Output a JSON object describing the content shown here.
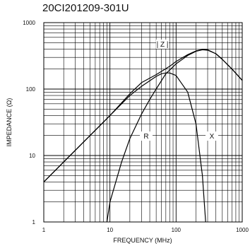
{
  "chart_data": {
    "type": "line",
    "title": "20CI201209-301U",
    "xlabel": "FREQUENCY (MHz)",
    "ylabel": "IMPEDANCE (Ω)",
    "x_scale": "log",
    "y_scale": "log",
    "xlim": [
      1,
      1000
    ],
    "ylim": [
      1,
      1000
    ],
    "grid": true,
    "x_tick_labels": [
      "1",
      "10",
      "100",
      "1000"
    ],
    "y_tick_labels": [
      "1",
      "10",
      "100",
      "1000"
    ],
    "series": [
      {
        "name": "| Z |",
        "x": [
          1,
          2,
          5,
          10,
          20,
          30,
          50,
          80,
          100,
          150,
          200,
          250,
          300,
          400,
          500,
          700,
          1000
        ],
        "y": [
          4,
          8,
          20,
          40,
          85,
          125,
          165,
          220,
          260,
          330,
          375,
          395,
          390,
          340,
          280,
          200,
          135
        ]
      },
      {
        "name": "R",
        "x": [
          9,
          10,
          15,
          20,
          30,
          40,
          50,
          70,
          100,
          150,
          200,
          250,
          300,
          400,
          500,
          700,
          1000
        ],
        "y": [
          1,
          2,
          8,
          18,
          42,
          70,
          100,
          170,
          240,
          320,
          370,
          390,
          385,
          340,
          280,
          200,
          135
        ]
      },
      {
        "name": "X",
        "x": [
          1,
          2,
          5,
          10,
          20,
          30,
          50,
          60,
          70,
          80,
          100,
          150,
          200,
          250,
          280
        ],
        "y": [
          4,
          8,
          20,
          40,
          80,
          110,
          155,
          170,
          175,
          175,
          160,
          90,
          30,
          5,
          1
        ]
      }
    ]
  }
}
